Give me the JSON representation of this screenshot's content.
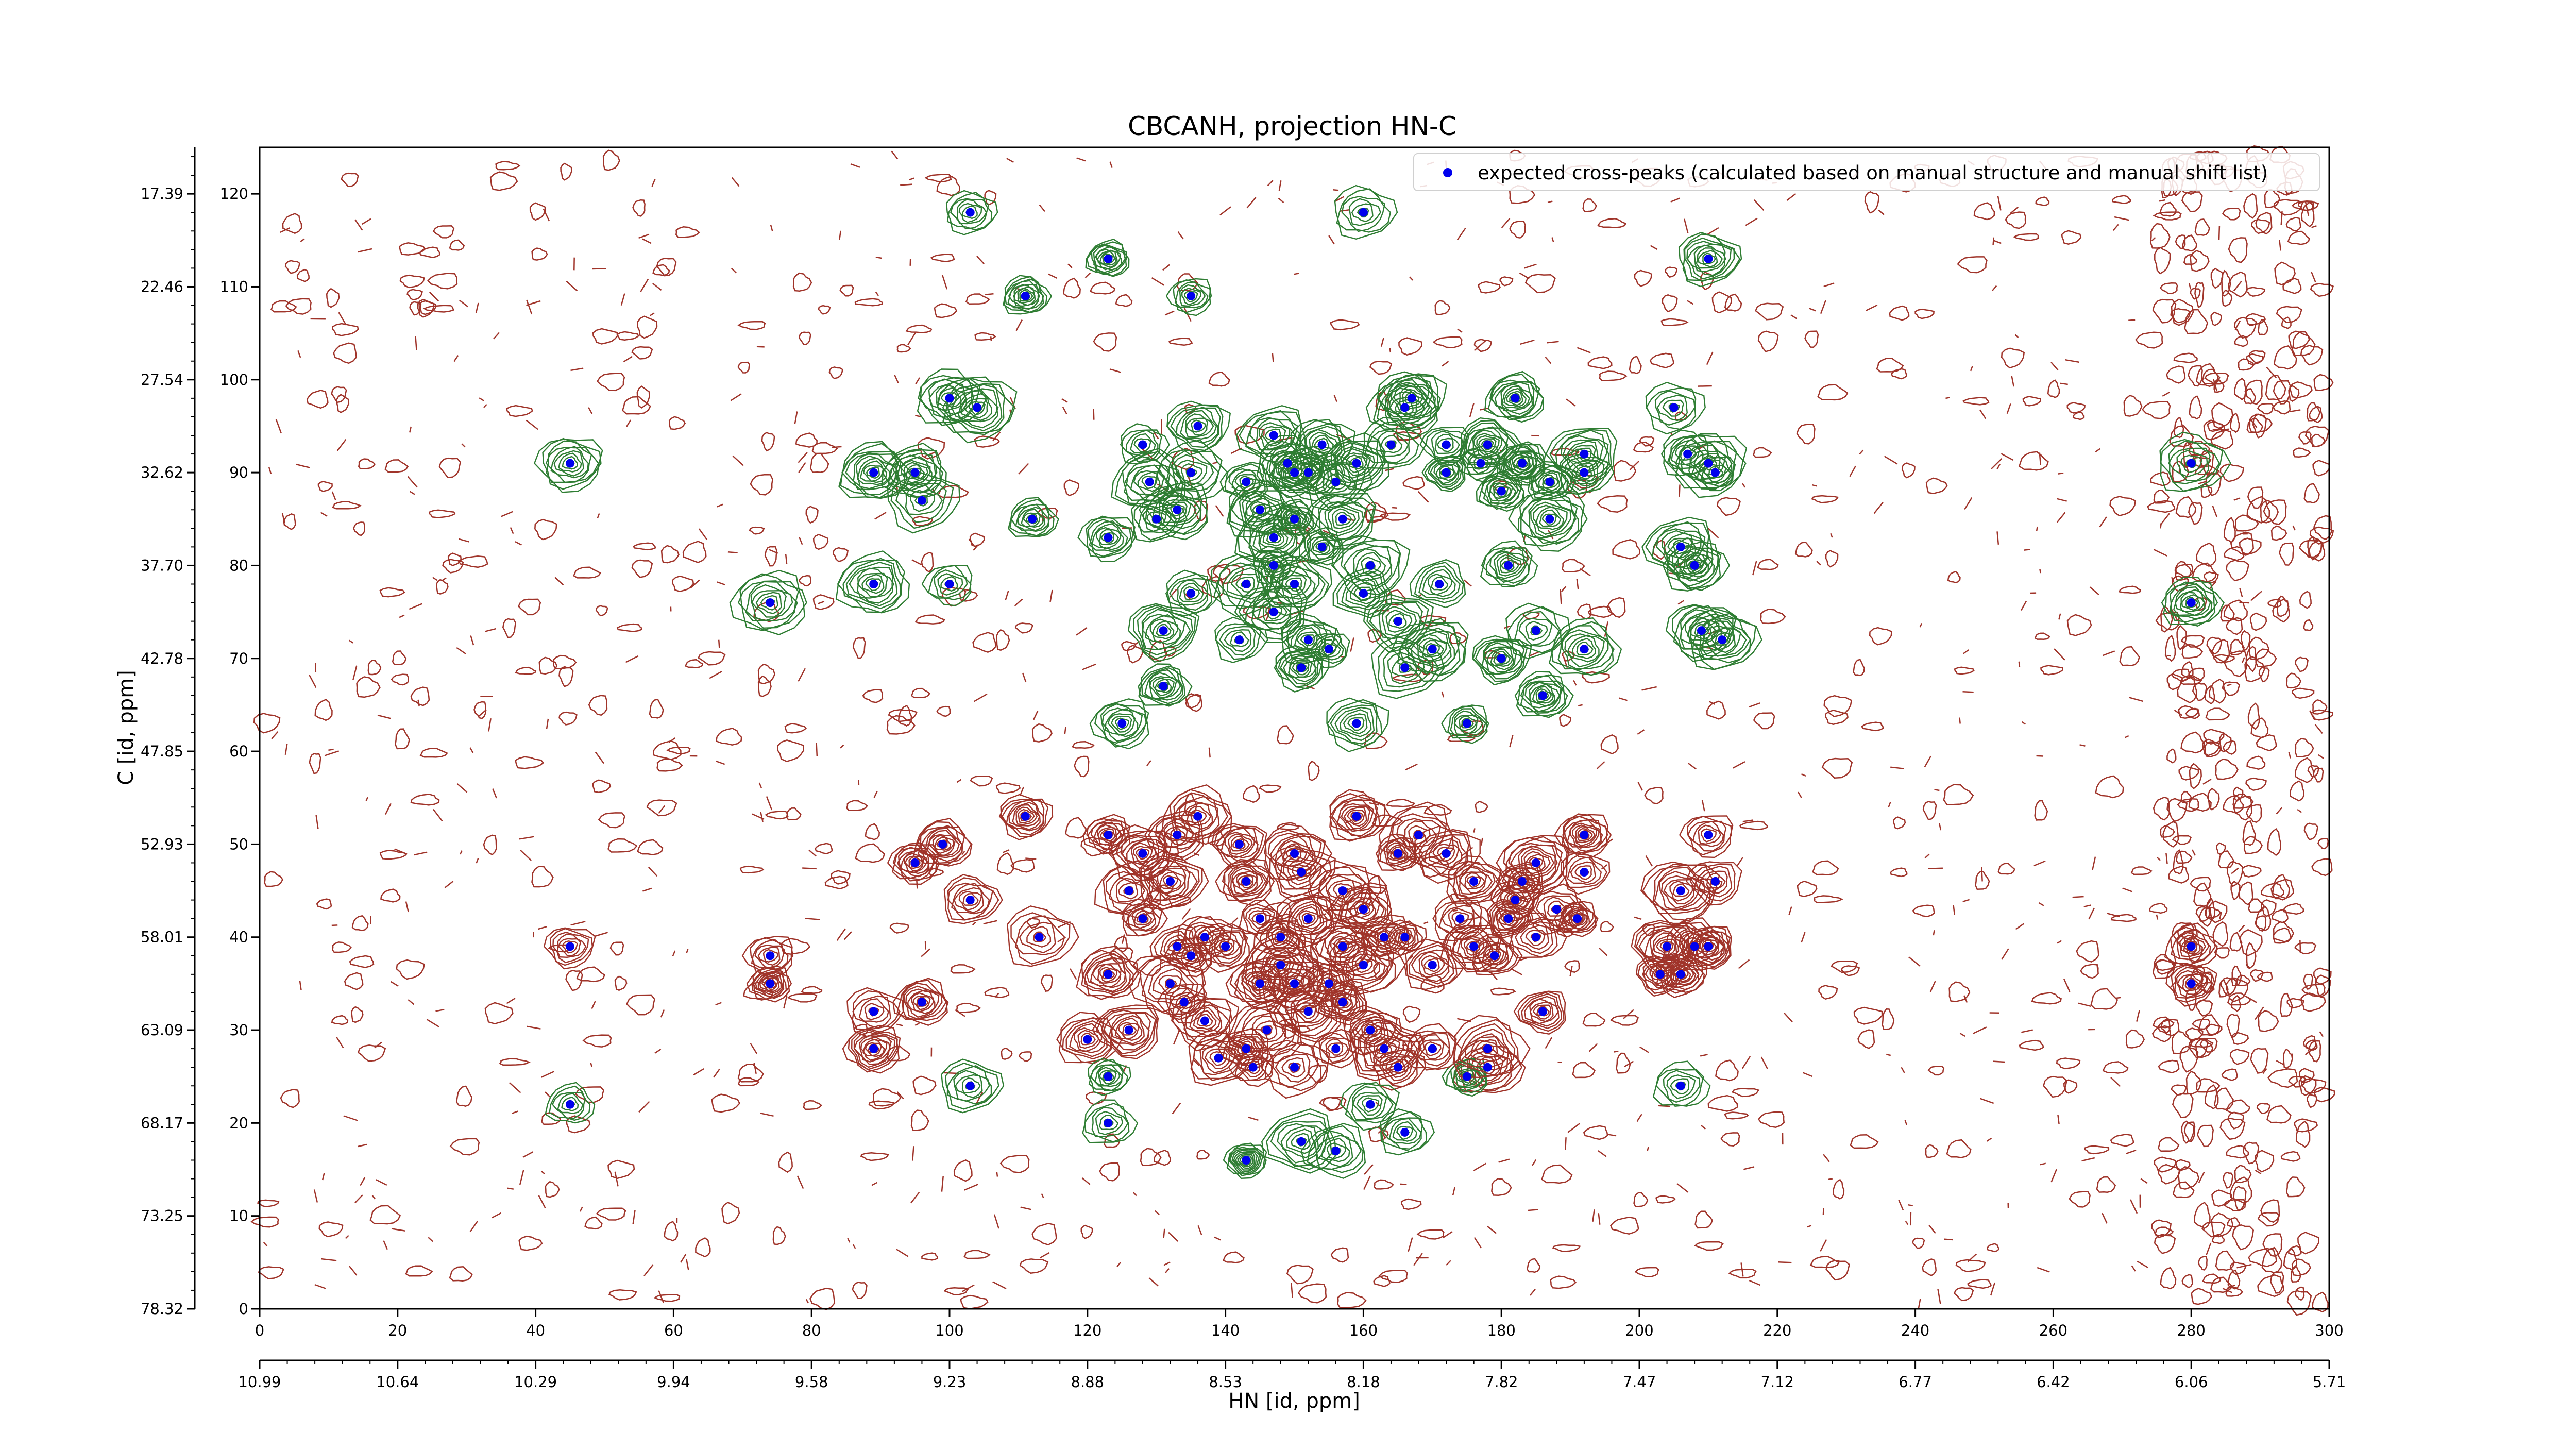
{
  "chart_data": {
    "type": "scatter",
    "title": "CBCANH, projection HN-C",
    "xlabel": "HN [id, ppm]",
    "ylabel": "C [id, ppm]",
    "x_index_ticks": [
      "0",
      "20",
      "40",
      "60",
      "80",
      "100",
      "120",
      "140",
      "160",
      "180",
      "200",
      "220",
      "240",
      "260",
      "280",
      "300"
    ],
    "x_index_range": [
      0,
      300
    ],
    "x_ppm_ticks": [
      "10.99",
      "10.64",
      "10.29",
      "9.94",
      "9.58",
      "9.23",
      "8.88",
      "8.53",
      "8.18",
      "7.82",
      "7.47",
      "7.12",
      "6.77",
      "6.42",
      "6.06",
      "5.71"
    ],
    "y_index_ticks": [
      "0",
      "10",
      "20",
      "30",
      "40",
      "50",
      "60",
      "70",
      "80",
      "90",
      "100",
      "110",
      "120"
    ],
    "y_index_range": [
      0,
      125
    ],
    "y_ppm_ticks": [
      "78.32",
      "73.25",
      "68.17",
      "63.09",
      "58.01",
      "52.93",
      "47.85",
      "42.78",
      "37.70",
      "32.62",
      "27.54",
      "22.46",
      "17.39"
    ],
    "grid": false,
    "legend_position": "top-right",
    "colors": {
      "marker": "#0000ee",
      "positive_contour": "#2e7d32",
      "negative_contour": "#a0342a"
    },
    "series": [
      {
        "name": "expected cross-peaks (calculated based on manual structure and manual shift list)",
        "points": [
          [
            103,
            118
          ],
          [
            160,
            118
          ],
          [
            123,
            113
          ],
          [
            111,
            109
          ],
          [
            135,
            109
          ],
          [
            210,
            113
          ],
          [
            45,
            91
          ],
          [
            89,
            90
          ],
          [
            95,
            90
          ],
          [
            96,
            87
          ],
          [
            100,
            98
          ],
          [
            104,
            97
          ],
          [
            112,
            85
          ],
          [
            123,
            83
          ],
          [
            129,
            89
          ],
          [
            128,
            93
          ],
          [
            135,
            90
          ],
          [
            136,
            95
          ],
          [
            130,
            85
          ],
          [
            133,
            86
          ],
          [
            143,
            89
          ],
          [
            147,
            94
          ],
          [
            149,
            91
          ],
          [
            154,
            93
          ],
          [
            156,
            89
          ],
          [
            145,
            86
          ],
          [
            150,
            85
          ],
          [
            150,
            90
          ],
          [
            152,
            90
          ],
          [
            159,
            91
          ],
          [
            164,
            93
          ],
          [
            166,
            97
          ],
          [
            167,
            98
          ],
          [
            172,
            93
          ],
          [
            172,
            90
          ],
          [
            177,
            91
          ],
          [
            178,
            93
          ],
          [
            180,
            88
          ],
          [
            183,
            91
          ],
          [
            182,
            98
          ],
          [
            187,
            89
          ],
          [
            192,
            92
          ],
          [
            183,
            91
          ],
          [
            192,
            90
          ],
          [
            187,
            85
          ],
          [
            205,
            97
          ],
          [
            207,
            92
          ],
          [
            210,
            91
          ],
          [
            211,
            90
          ],
          [
            206,
            82
          ],
          [
            208,
            80
          ],
          [
            157,
            85
          ],
          [
            154,
            82
          ],
          [
            143,
            78
          ],
          [
            147,
            80
          ],
          [
            147,
            83
          ],
          [
            150,
            78
          ],
          [
            147,
            75
          ],
          [
            152,
            72
          ],
          [
            155,
            71
          ],
          [
            161,
            80
          ],
          [
            171,
            78
          ],
          [
            181,
            80
          ],
          [
            170,
            71
          ],
          [
            165,
            74
          ],
          [
            160,
            77
          ],
          [
            135,
            77
          ],
          [
            131,
            73
          ],
          [
            131,
            67
          ],
          [
            142,
            72
          ],
          [
            151,
            69
          ],
          [
            166,
            69
          ],
          [
            180,
            70
          ],
          [
            185,
            73
          ],
          [
            186,
            66
          ],
          [
            192,
            71
          ],
          [
            209,
            73
          ],
          [
            212,
            72
          ],
          [
            74,
            76
          ],
          [
            89,
            78
          ],
          [
            100,
            78
          ],
          [
            280,
            91
          ],
          [
            280,
            76
          ],
          [
            125,
            63
          ],
          [
            159,
            63
          ],
          [
            175,
            63
          ],
          [
            111,
            53
          ],
          [
            123,
            51
          ],
          [
            99,
            50
          ],
          [
            95,
            48
          ],
          [
            103,
            44
          ],
          [
            128,
            49
          ],
          [
            133,
            51
          ],
          [
            136,
            53
          ],
          [
            132,
            46
          ],
          [
            126,
            45
          ],
          [
            142,
            50
          ],
          [
            150,
            49
          ],
          [
            159,
            53
          ],
          [
            165,
            49
          ],
          [
            143,
            46
          ],
          [
            151,
            47
          ],
          [
            157,
            45
          ],
          [
            160,
            43
          ],
          [
            168,
            51
          ],
          [
            172,
            49
          ],
          [
            176,
            46
          ],
          [
            182,
            44
          ],
          [
            185,
            48
          ],
          [
            192,
            47
          ],
          [
            191,
            42
          ],
          [
            185,
            40
          ],
          [
            179,
            38
          ],
          [
            188,
            43
          ],
          [
            181,
            42
          ],
          [
            176,
            39
          ],
          [
            174,
            42
          ],
          [
            183,
            46
          ],
          [
            192,
            51
          ],
          [
            206,
            45
          ],
          [
            211,
            46
          ],
          [
            210,
            51
          ],
          [
            204,
            39
          ],
          [
            208,
            39
          ],
          [
            210,
            39
          ],
          [
            203,
            36
          ],
          [
            206,
            36
          ],
          [
            128,
            42
          ],
          [
            133,
            39
          ],
          [
            137,
            40
          ],
          [
            135,
            38
          ],
          [
            140,
            39
          ],
          [
            145,
            42
          ],
          [
            148,
            40
          ],
          [
            152,
            42
          ],
          [
            157,
            39
          ],
          [
            163,
            40
          ],
          [
            166,
            40
          ],
          [
            170,
            37
          ],
          [
            148,
            37
          ],
          [
            155,
            35
          ],
          [
            160,
            37
          ],
          [
            132,
            35
          ],
          [
            134,
            33
          ],
          [
            137,
            31
          ],
          [
            123,
            36
          ],
          [
            126,
            30
          ],
          [
            120,
            29
          ],
          [
            123,
            25
          ],
          [
            113,
            40
          ],
          [
            89,
            32
          ],
          [
            89,
            28
          ],
          [
            96,
            33
          ],
          [
            45,
            39
          ],
          [
            74,
            38
          ],
          [
            74,
            35
          ],
          [
            103,
            24
          ],
          [
            145,
            35
          ],
          [
            150,
            35
          ],
          [
            152,
            32
          ],
          [
            157,
            33
          ],
          [
            161,
            30
          ],
          [
            146,
            30
          ],
          [
            143,
            28
          ],
          [
            139,
            27
          ],
          [
            144,
            26
          ],
          [
            150,
            26
          ],
          [
            156,
            28
          ],
          [
            163,
            28
          ],
          [
            165,
            26
          ],
          [
            178,
            26
          ],
          [
            186,
            32
          ],
          [
            206,
            24
          ],
          [
            280,
            39
          ],
          [
            280,
            35
          ],
          [
            45,
            22
          ],
          [
            123,
            20
          ],
          [
            143,
            16
          ],
          [
            151,
            18
          ],
          [
            156,
            17
          ],
          [
            161,
            22
          ],
          [
            166,
            19
          ],
          [
            175,
            25
          ],
          [
            170,
            28
          ],
          [
            178,
            28
          ]
        ]
      }
    ]
  }
}
